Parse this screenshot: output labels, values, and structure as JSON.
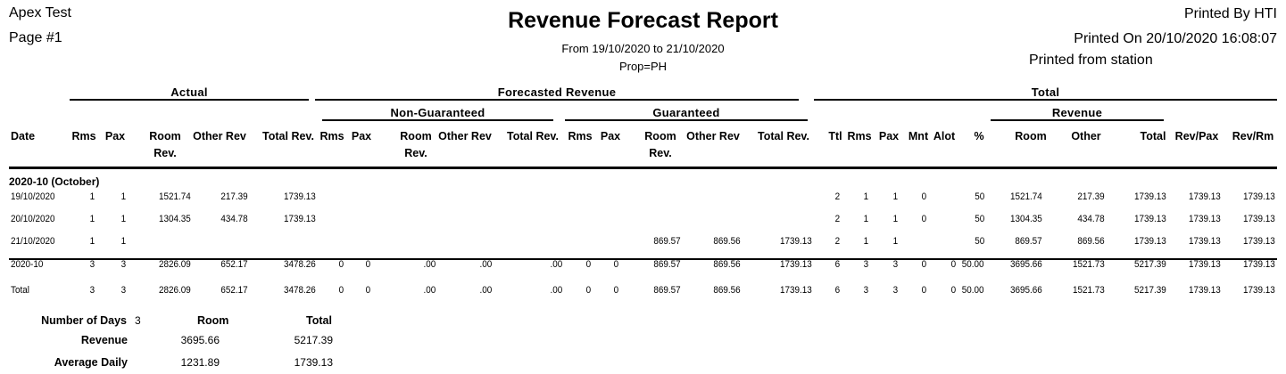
{
  "header": {
    "company": "Apex Test",
    "page": "Page #1",
    "title": "Revenue Forecast Report",
    "date_range": "From 19/10/2020 to 21/10/2020",
    "prop": "Prop=PH",
    "printed_by": "Printed By HTI",
    "printed_on": "Printed On 20/10/2020 16:08:07",
    "printed_from": "Printed from station"
  },
  "groups": {
    "actual": "Actual",
    "forecasted": "Forecasted Revenue",
    "non_guaranteed": "Non-Guaranteed",
    "guaranteed": "Guaranteed",
    "total": "Total",
    "revenue": "Revenue"
  },
  "columns": [
    "Date",
    "Rms",
    "Pax",
    "Room Rev.",
    "Other Rev",
    "Total Rev.",
    "Rms",
    "Pax",
    "Room Rev.",
    "Other Rev",
    "Total Rev.",
    "Rms",
    "Pax",
    "Room Rev.",
    "Other Rev",
    "Total Rev.",
    "Ttl",
    "Rms",
    "Pax",
    "Mnt",
    "Alot",
    "%",
    "Room",
    "Other",
    "Total",
    "Rev/Pax",
    "Rev/Rm"
  ],
  "month_label": "2020-10 (October)",
  "rows": [
    [
      "19/10/2020",
      "1",
      "1",
      "1521.74",
      "217.39",
      "1739.13",
      "",
      "",
      "",
      "",
      "",
      "",
      "",
      "",
      "",
      "",
      "2",
      "1",
      "1",
      "0",
      "",
      "50",
      "1521.74",
      "217.39",
      "1739.13",
      "1739.13",
      "1739.13"
    ],
    [
      "20/10/2020",
      "1",
      "1",
      "1304.35",
      "434.78",
      "1739.13",
      "",
      "",
      "",
      "",
      "",
      "",
      "",
      "",
      "",
      "",
      "2",
      "1",
      "1",
      "0",
      "",
      "50",
      "1304.35",
      "434.78",
      "1739.13",
      "1739.13",
      "1739.13"
    ],
    [
      "21/10/2020",
      "1",
      "1",
      "",
      "",
      "",
      "",
      "",
      "",
      "",
      "",
      "",
      "",
      "869.57",
      "869.56",
      "1739.13",
      "2",
      "1",
      "1",
      "",
      "",
      "50",
      "869.57",
      "869.56",
      "1739.13",
      "1739.13",
      "1739.13"
    ]
  ],
  "totals": [
    [
      "2020-10",
      "3",
      "3",
      "2826.09",
      "652.17",
      "3478.26",
      "0",
      "0",
      ".00",
      ".00",
      ".00",
      "0",
      "0",
      "869.57",
      "869.56",
      "1739.13",
      "6",
      "3",
      "3",
      "0",
      "0",
      "50.00",
      "3695.66",
      "1521.73",
      "5217.39",
      "1739.13",
      "1739.13"
    ],
    [
      "Total",
      "3",
      "3",
      "2826.09",
      "652.17",
      "3478.26",
      "0",
      "0",
      ".00",
      ".00",
      ".00",
      "0",
      "0",
      "869.57",
      "869.56",
      "1739.13",
      "6",
      "3",
      "3",
      "0",
      "0",
      "50.00",
      "3695.66",
      "1521.73",
      "5217.39",
      "1739.13",
      "1739.13"
    ]
  ],
  "summary": {
    "days_label": "Number of Days",
    "days": "3",
    "room_label": "Room",
    "total_label": "Total",
    "revenue_label": "Revenue",
    "revenue_room": "3695.66",
    "revenue_total": "5217.39",
    "avg_label": "Average Daily",
    "avg_room": "1231.89",
    "avg_total": "1739.13"
  }
}
